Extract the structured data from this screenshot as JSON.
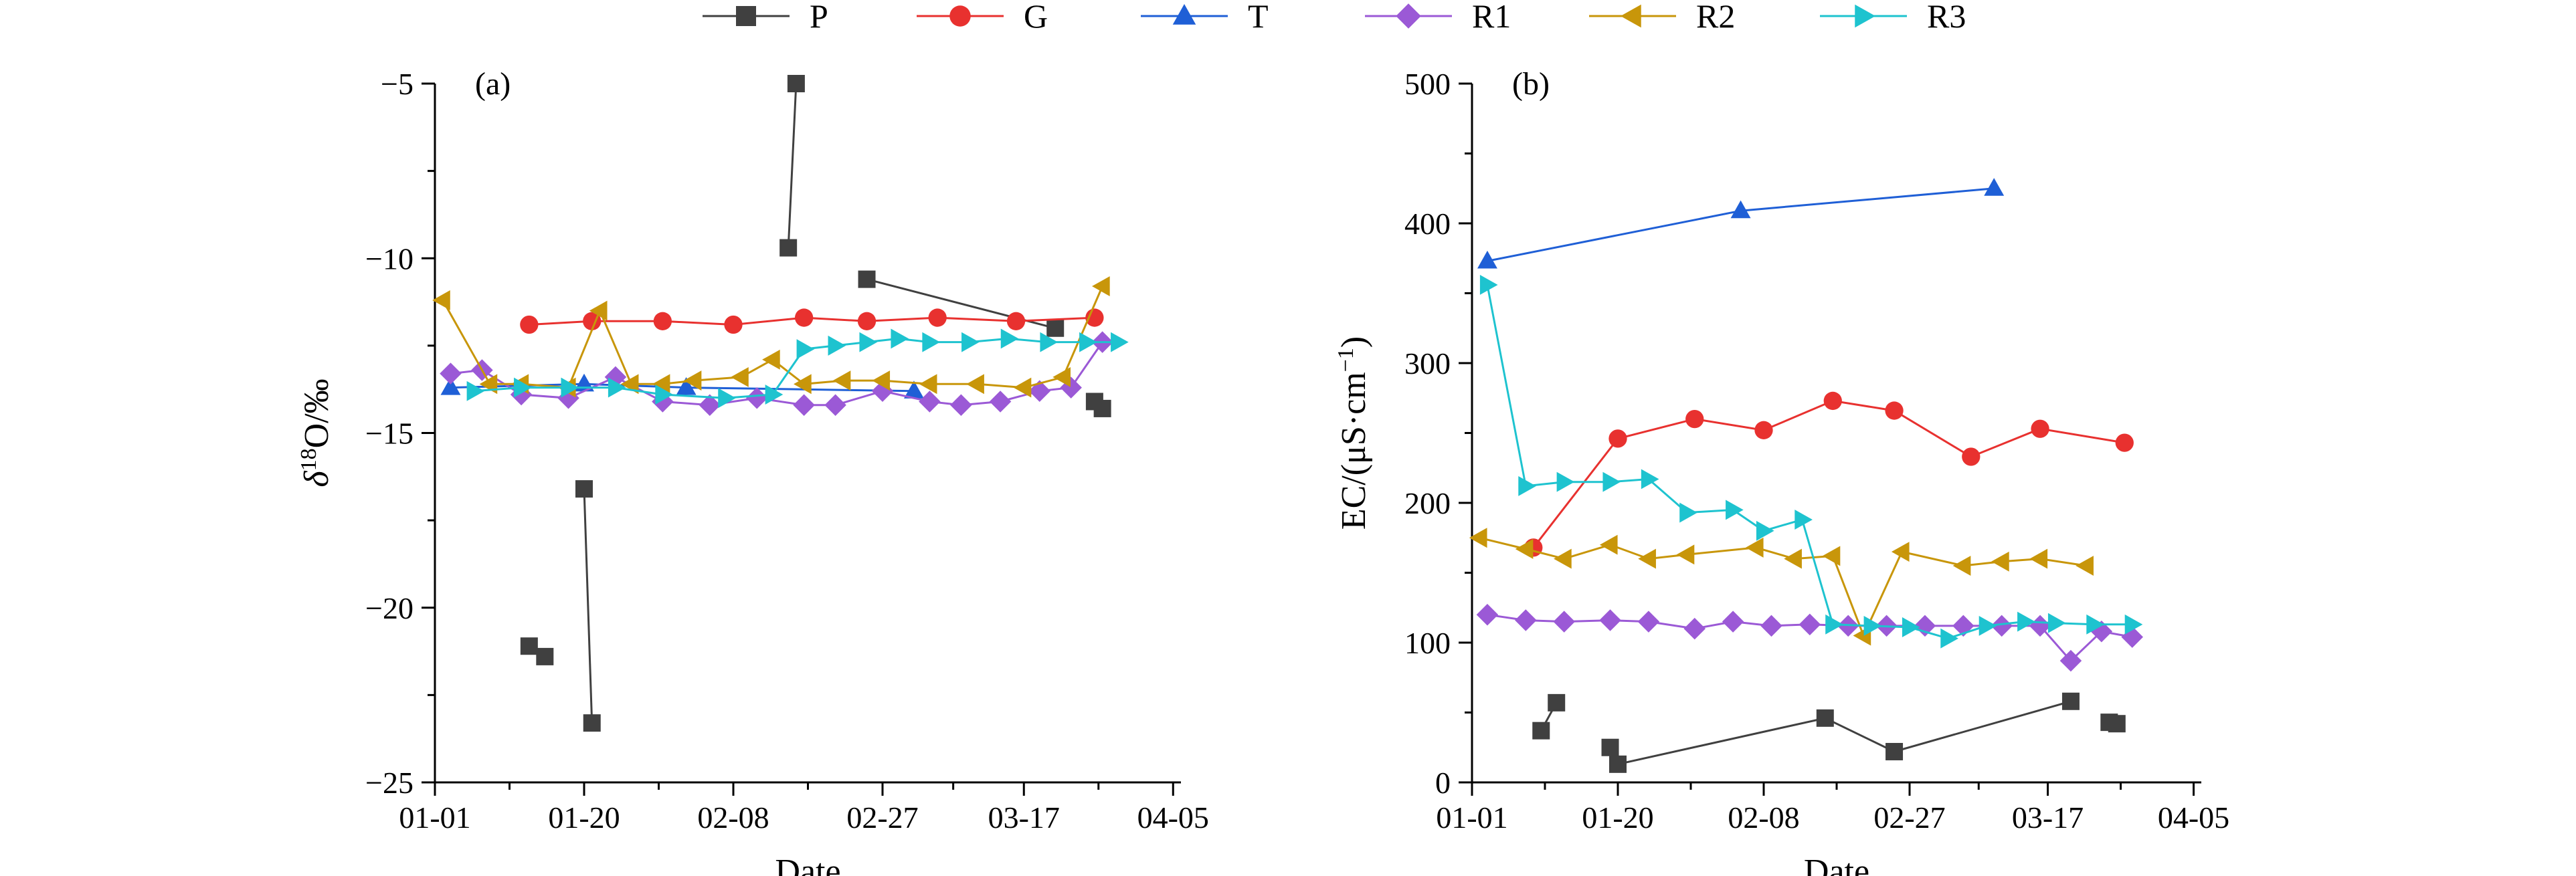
{
  "legend": [
    {
      "key": "P",
      "label": "P",
      "color": "#404040",
      "marker": "square"
    },
    {
      "key": "G",
      "label": "G",
      "color": "#e8312f",
      "marker": "circle"
    },
    {
      "key": "T",
      "label": "T",
      "color": "#1f5fd6",
      "marker": "triangle-up"
    },
    {
      "key": "R1",
      "label": "R1",
      "color": "#9b59d6",
      "marker": "diamond"
    },
    {
      "key": "R2",
      "label": "R2",
      "color": "#c8960a",
      "marker": "triangle-left"
    },
    {
      "key": "R3",
      "label": "R3",
      "color": "#1ec3cf",
      "marker": "triangle-right"
    }
  ],
  "chart_data": [
    {
      "type": "line",
      "panel_label": "(a)",
      "xlabel": "Date",
      "ylabel": "δ18O/‰",
      "ylabel_parts": {
        "italic": "δ",
        "sup": "18",
        "rest": "O/‰"
      },
      "x_unit": "day of year (1 = 01-01)",
      "xlim": [
        1,
        96
      ],
      "ylim": [
        -25,
        -5
      ],
      "xticks": [
        {
          "value": 1,
          "label": "01-01"
        },
        {
          "value": 20,
          "label": "01-20"
        },
        {
          "value": 39,
          "label": "02-08"
        },
        {
          "value": 58,
          "label": "02-27"
        },
        {
          "value": 76,
          "label": "03-17"
        },
        {
          "value": 95,
          "label": "04-05"
        }
      ],
      "yticks": [
        {
          "value": -25,
          "label": "−25"
        },
        {
          "value": -20,
          "label": "−20"
        },
        {
          "value": -15,
          "label": "−15"
        },
        {
          "value": -10,
          "label": "−10"
        },
        {
          "value": -5,
          "label": "−5"
        }
      ],
      "series": [
        {
          "key": "P",
          "points": [
            [
              13,
              -21.1
            ],
            [
              15,
              -21.4
            ],
            [
              null,
              null
            ],
            [
              20,
              -16.6
            ],
            [
              21,
              -23.3
            ],
            [
              null,
              null
            ],
            [
              46,
              -9.7
            ],
            [
              47,
              -5.0
            ],
            [
              null,
              null
            ],
            [
              56,
              -10.6
            ],
            [
              80,
              -12.0
            ],
            [
              null,
              null
            ],
            [
              85,
              -14.1
            ],
            [
              86,
              -14.3
            ]
          ]
        },
        {
          "key": "G",
          "points": [
            [
              13,
              -11.9
            ],
            [
              21,
              -11.8
            ],
            [
              30,
              -11.8
            ],
            [
              39,
              -11.9
            ],
            [
              48,
              -11.7
            ],
            [
              56,
              -11.8
            ],
            [
              65,
              -11.7
            ],
            [
              75,
              -11.8
            ],
            [
              85,
              -11.7
            ]
          ]
        },
        {
          "key": "T",
          "points": [
            [
              3,
              -13.7
            ],
            [
              20,
              -13.6
            ],
            [
              33,
              -13.7
            ],
            [
              62,
              -13.8
            ]
          ]
        },
        {
          "key": "R1",
          "points": [
            [
              3,
              -13.3
            ],
            [
              7,
              -13.2
            ],
            [
              12,
              -13.9
            ],
            [
              18,
              -14.0
            ],
            [
              24,
              -13.4
            ],
            [
              30,
              -14.1
            ],
            [
              36,
              -14.2
            ],
            [
              42,
              -14.0
            ],
            [
              48,
              -14.2
            ],
            [
              52,
              -14.2
            ],
            [
              58,
              -13.8
            ],
            [
              64,
              -14.1
            ],
            [
              68,
              -14.2
            ],
            [
              73,
              -14.1
            ],
            [
              78,
              -13.8
            ],
            [
              82,
              -13.7
            ],
            [
              86,
              -12.4
            ]
          ]
        },
        {
          "key": "R2",
          "points": [
            [
              2,
              -11.2
            ],
            [
              8,
              -13.6
            ],
            [
              12,
              -13.6
            ],
            [
              18,
              -13.7
            ],
            [
              22,
              -11.5
            ],
            [
              26,
              -13.6
            ],
            [
              30,
              -13.6
            ],
            [
              34,
              -13.5
            ],
            [
              40,
              -13.4
            ],
            [
              44,
              -12.9
            ],
            [
              48,
              -13.6
            ],
            [
              53,
              -13.5
            ],
            [
              58,
              -13.5
            ],
            [
              64,
              -13.6
            ],
            [
              70,
              -13.6
            ],
            [
              76,
              -13.7
            ],
            [
              81,
              -13.4
            ],
            [
              86,
              -10.8
            ]
          ]
        },
        {
          "key": "R3",
          "points": [
            [
              6,
              -13.8
            ],
            [
              12,
              -13.7
            ],
            [
              18,
              -13.7
            ],
            [
              24,
              -13.7
            ],
            [
              30,
              -13.9
            ],
            [
              38,
              -14.0
            ],
            [
              44,
              -13.9
            ],
            [
              48,
              -12.6
            ],
            [
              52,
              -12.5
            ],
            [
              56,
              -12.4
            ],
            [
              60,
              -12.3
            ],
            [
              64,
              -12.4
            ],
            [
              69,
              -12.4
            ],
            [
              74,
              -12.3
            ],
            [
              79,
              -12.4
            ],
            [
              84,
              -12.4
            ],
            [
              88,
              -12.4
            ]
          ]
        }
      ]
    },
    {
      "type": "line",
      "panel_label": "(b)",
      "xlabel": "Date",
      "ylabel": "EC/(μS·cm−1)",
      "ylabel_parts": {
        "base": "EC/(μS·cm",
        "sup": "−1",
        "close": ")"
      },
      "x_unit": "day of year (1 = 01-01)",
      "xlim": [
        1,
        96
      ],
      "ylim": [
        0,
        500
      ],
      "xticks": [
        {
          "value": 1,
          "label": "01-01"
        },
        {
          "value": 20,
          "label": "01-20"
        },
        {
          "value": 39,
          "label": "02-08"
        },
        {
          "value": 58,
          "label": "02-27"
        },
        {
          "value": 76,
          "label": "03-17"
        },
        {
          "value": 95,
          "label": "04-05"
        }
      ],
      "yticks": [
        {
          "value": 0,
          "label": "0"
        },
        {
          "value": 100,
          "label": "100"
        },
        {
          "value": 200,
          "label": "200"
        },
        {
          "value": 300,
          "label": "300"
        },
        {
          "value": 400,
          "label": "400"
        },
        {
          "value": 500,
          "label": "500"
        }
      ],
      "series": [
        {
          "key": "P",
          "points": [
            [
              10,
              37
            ],
            [
              12,
              57
            ],
            [
              null,
              null
            ],
            [
              19,
              25
            ],
            [
              20,
              13
            ],
            [
              47,
              46
            ],
            [
              56,
              22
            ],
            [
              79,
              58
            ],
            [
              null,
              null
            ],
            [
              84,
              43
            ],
            [
              85,
              42
            ]
          ]
        },
        {
          "key": "G",
          "points": [
            [
              9,
              168
            ],
            [
              20,
              246
            ],
            [
              30,
              260
            ],
            [
              39,
              252
            ],
            [
              48,
              273
            ],
            [
              56,
              266
            ],
            [
              66,
              233
            ],
            [
              75,
              253
            ],
            [
              86,
              243
            ]
          ]
        },
        {
          "key": "T",
          "points": [
            [
              3,
              373
            ],
            [
              36,
              409
            ],
            [
              69,
              425
            ]
          ]
        },
        {
          "key": "R1",
          "points": [
            [
              3,
              120
            ],
            [
              8,
              116
            ],
            [
              13,
              115
            ],
            [
              19,
              116
            ],
            [
              24,
              115
            ],
            [
              30,
              110
            ],
            [
              35,
              115
            ],
            [
              40,
              112
            ],
            [
              45,
              113
            ],
            [
              50,
              112
            ],
            [
              55,
              112
            ],
            [
              60,
              112
            ],
            [
              65,
              112
            ],
            [
              70,
              112
            ],
            [
              75,
              112
            ],
            [
              79,
              87
            ],
            [
              83,
              108
            ],
            [
              87,
              104
            ]
          ]
        },
        {
          "key": "R2",
          "points": [
            [
              2,
              175
            ],
            [
              8,
              167
            ],
            [
              13,
              160
            ],
            [
              19,
              170
            ],
            [
              24,
              160
            ],
            [
              29,
              163
            ],
            [
              38,
              168
            ],
            [
              43,
              160
            ],
            [
              48,
              162
            ],
            [
              52,
              105
            ],
            [
              57,
              165
            ],
            [
              65,
              155
            ],
            [
              70,
              158
            ],
            [
              75,
              160
            ],
            [
              81,
              155
            ]
          ]
        },
        {
          "key": "R3",
          "points": [
            [
              3,
              356
            ],
            [
              8,
              212
            ],
            [
              13,
              215
            ],
            [
              19,
              215
            ],
            [
              24,
              217
            ],
            [
              29,
              193
            ],
            [
              35,
              195
            ],
            [
              39,
              180
            ],
            [
              44,
              188
            ],
            [
              48,
              113
            ],
            [
              53,
              112
            ],
            [
              58,
              111
            ],
            [
              63,
              103
            ],
            [
              68,
              112
            ],
            [
              73,
              115
            ],
            [
              77,
              114
            ],
            [
              82,
              113
            ],
            [
              87,
              113
            ]
          ]
        }
      ]
    }
  ]
}
